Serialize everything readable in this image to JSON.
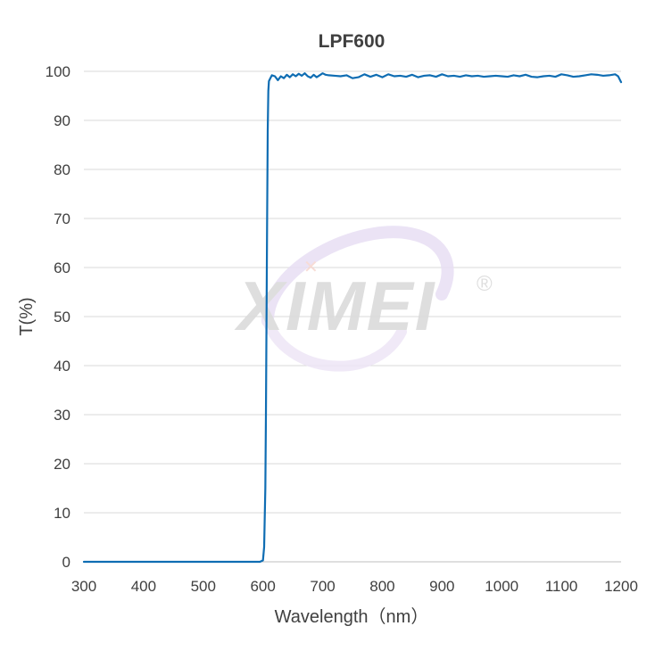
{
  "chart_data": {
    "type": "line",
    "title": "LPF600",
    "xlabel": "Wavelength（nm）",
    "ylabel": "T(%)",
    "xlim": [
      300,
      1200
    ],
    "ylim": [
      0,
      100
    ],
    "xticks": [
      300,
      400,
      500,
      600,
      700,
      800,
      900,
      1000,
      1100,
      1200
    ],
    "yticks": [
      0,
      10,
      20,
      30,
      40,
      50,
      60,
      70,
      80,
      90,
      100
    ],
    "grid": "horizontal",
    "legend": "none",
    "series": [
      {
        "color": "#0f6db3",
        "x": [
          300,
          400,
          500,
          595,
          600,
          602,
          604,
          605,
          606,
          607,
          608,
          609,
          610,
          612,
          615,
          620,
          625,
          630,
          635,
          640,
          645,
          650,
          655,
          660,
          665,
          670,
          675,
          680,
          685,
          690,
          695,
          700,
          705,
          710,
          720,
          730,
          740,
          750,
          760,
          770,
          780,
          790,
          800,
          810,
          820,
          830,
          840,
          850,
          860,
          870,
          880,
          890,
          900,
          910,
          920,
          930,
          940,
          950,
          960,
          970,
          980,
          990,
          1000,
          1010,
          1020,
          1030,
          1040,
          1050,
          1060,
          1070,
          1080,
          1090,
          1100,
          1110,
          1120,
          1130,
          1140,
          1150,
          1160,
          1170,
          1180,
          1190,
          1195,
          1200
        ],
        "y": [
          0,
          0,
          0,
          0,
          0.3,
          3,
          15,
          30,
          50,
          70,
          88,
          96,
          98,
          98.5,
          99.2,
          99,
          98.2,
          99,
          98.6,
          99.3,
          98.8,
          99.4,
          99,
          99.5,
          99.1,
          99.6,
          99,
          98.7,
          99.3,
          98.8,
          99.2,
          99.6,
          99.3,
          99.2,
          99.1,
          99,
          99.2,
          98.6,
          98.8,
          99.4,
          98.9,
          99.3,
          98.8,
          99.4,
          99,
          99.1,
          98.9,
          99.3,
          98.8,
          99.1,
          99.2,
          98.9,
          99.4,
          99,
          99.1,
          98.9,
          99.2,
          99,
          99.1,
          98.9,
          99,
          99.1,
          99,
          98.9,
          99.2,
          99,
          99.3,
          98.9,
          98.8,
          99,
          99.1,
          98.9,
          99.4,
          99.2,
          98.9,
          99,
          99.2,
          99.4,
          99.3,
          99.1,
          99.2,
          99.4,
          99,
          97.8
        ]
      }
    ]
  },
  "watermark": {
    "text": "XIMEI",
    "registered": "®"
  }
}
